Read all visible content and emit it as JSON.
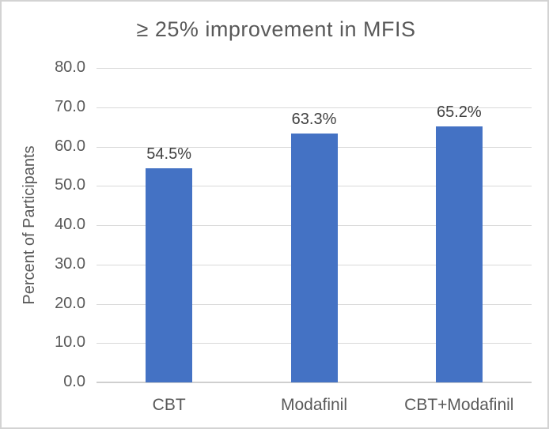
{
  "chart_data": {
    "type": "bar",
    "title": "≥ 25% improvement in MFIS",
    "categories": [
      "CBT",
      "Modafinil",
      "CBT+Modafinil"
    ],
    "values": [
      54.5,
      63.3,
      65.2
    ],
    "bar_labels": [
      "54.5%",
      "63.3%",
      "65.2%"
    ],
    "xlabel": "",
    "ylabel": "Percent of Participants",
    "ylim": [
      0,
      80
    ],
    "ytick_step": 10,
    "ytick_labels": [
      "0.0",
      "10.0",
      "20.0",
      "30.0",
      "40.0",
      "50.0",
      "60.0",
      "70.0",
      "80.0"
    ],
    "grid": true,
    "legend": "none",
    "colors": {
      "bar": "#4472C4",
      "gridline": "#D9D9D9",
      "axis_line": "#CFCFCF",
      "text": "#595959",
      "frame_border": "#D3D3D3",
      "background": "#FFFFFF"
    }
  }
}
